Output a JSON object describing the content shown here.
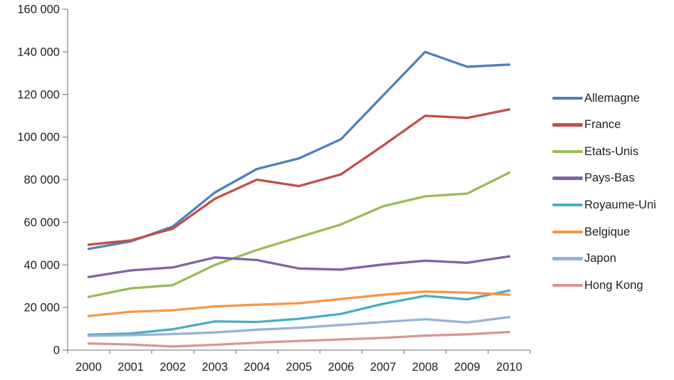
{
  "chart_data": {
    "type": "line",
    "title": "",
    "xlabel": "",
    "ylabel": "",
    "x": [
      "2000",
      "2001",
      "2002",
      "2003",
      "2004",
      "2005",
      "2006",
      "2007",
      "2008",
      "2009",
      "2010"
    ],
    "series": [
      {
        "name": "Allemagne",
        "color": "#4F81BD",
        "values": [
          47500,
          51000,
          58000,
          74000,
          85000,
          90000,
          99000,
          119500,
          140000,
          133000,
          134000
        ]
      },
      {
        "name": "France",
        "color": "#C0504D",
        "values": [
          49500,
          51500,
          57000,
          71000,
          80000,
          77000,
          82500,
          96000,
          110000,
          109000,
          113000
        ]
      },
      {
        "name": "Etats-Unis",
        "color": "#9BBB59",
        "values": [
          25000,
          29000,
          30500,
          40000,
          47000,
          53000,
          59000,
          67500,
          72200,
          73500,
          83300
        ]
      },
      {
        "name": "Pays-Bas",
        "color": "#8064A2",
        "values": [
          34300,
          37400,
          38800,
          43500,
          42300,
          38300,
          37800,
          40200,
          42000,
          41000,
          44000
        ]
      },
      {
        "name": "Royaume-Uni",
        "color": "#4BACC6",
        "values": [
          7200,
          7800,
          9800,
          13500,
          13200,
          14700,
          17000,
          21700,
          25500,
          23800,
          28000
        ]
      },
      {
        "name": "Belgique",
        "color": "#F79646",
        "values": [
          16000,
          18000,
          18700,
          20500,
          21300,
          22000,
          24000,
          26000,
          27500,
          27000,
          26000
        ]
      },
      {
        "name": "Japon",
        "color": "#95B3D7",
        "values": [
          6700,
          7000,
          7500,
          8300,
          9600,
          10500,
          11800,
          13200,
          14500,
          13000,
          15500
        ]
      },
      {
        "name": "Hong Kong",
        "color": "#D99694",
        "values": [
          3100,
          2600,
          1700,
          2500,
          3500,
          4300,
          5000,
          5700,
          6800,
          7400,
          8500
        ]
      }
    ],
    "ylim": [
      0,
      160000
    ],
    "ytick_step": 20000,
    "y_tick_labels": [
      "0",
      "20 000",
      "40 000",
      "60 000",
      "80 000",
      "100 000",
      "120 000",
      "140 000",
      "160 000"
    ],
    "grid": false,
    "legend_position": "right",
    "axis_color": "#8C8C8C",
    "text_color": "#1f1f1f"
  }
}
